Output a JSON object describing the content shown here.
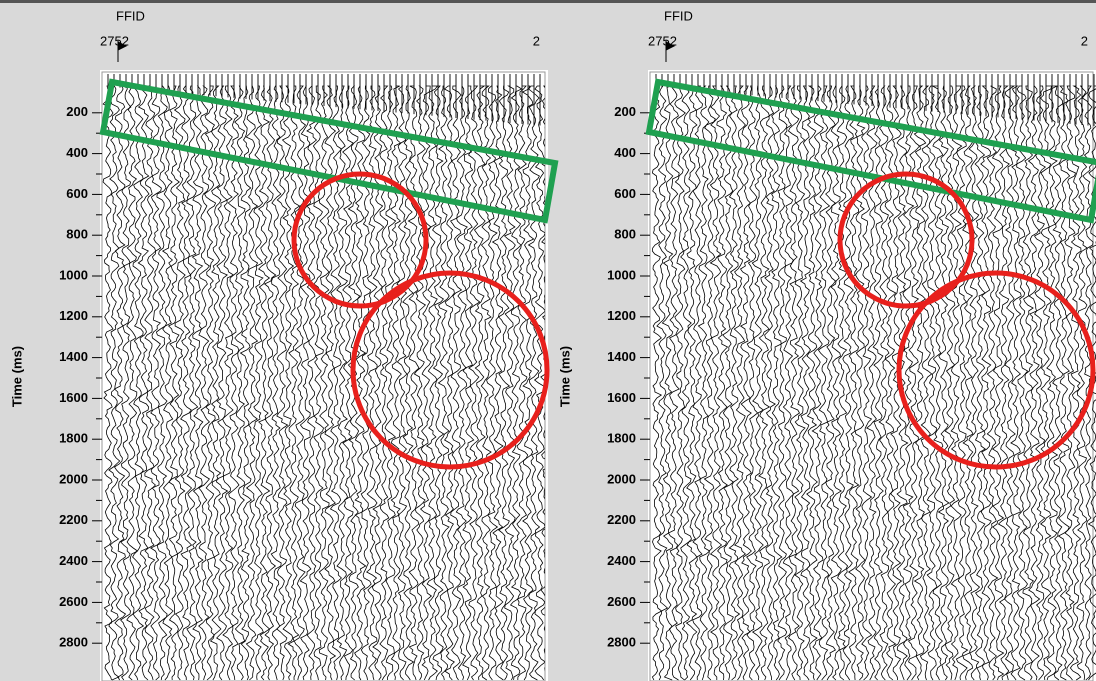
{
  "time_axis": {
    "label": "Time (ms)",
    "ylim": [
      0,
      3000
    ],
    "yticks": [
      200,
      400,
      600,
      800,
      1000,
      1200,
      1400,
      1600,
      1800,
      2000,
      2200,
      2400,
      2600,
      2800
    ]
  },
  "panels": [
    {
      "header_label": "FFID",
      "first_trace": "2752",
      "last_trace": "2"
    },
    {
      "header_label": "FFID",
      "first_trace": "2752",
      "last_trace": "2"
    }
  ]
}
